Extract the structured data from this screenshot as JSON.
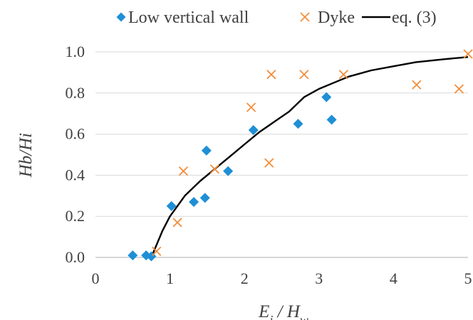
{
  "chart_data": {
    "type": "scatter",
    "xlabel": "E_i / H_w",
    "ylabel": "Hb/Hi",
    "xlim": [
      0,
      5
    ],
    "ylim": [
      0,
      1
    ],
    "xticks": [
      "0",
      "1",
      "2",
      "3",
      "4",
      "5"
    ],
    "yticks": [
      "0.0",
      "0.2",
      "0.4",
      "0.6",
      "0.8",
      "1.0"
    ],
    "grid": "horizontal",
    "legend_position": "top",
    "series": [
      {
        "name": "Low vertical wall",
        "marker": "diamond",
        "color": "#1f8fd6",
        "points": [
          [
            0.5,
            0.01
          ],
          [
            0.68,
            0.01
          ],
          [
            0.75,
            0.005
          ],
          [
            1.02,
            0.25
          ],
          [
            1.32,
            0.27
          ],
          [
            1.47,
            0.29
          ],
          [
            1.49,
            0.52
          ],
          [
            1.78,
            0.42
          ],
          [
            2.12,
            0.62
          ],
          [
            2.72,
            0.65
          ],
          [
            3.1,
            0.78
          ],
          [
            3.17,
            0.67
          ]
        ]
      },
      {
        "name": "Dyke",
        "marker": "x",
        "color": "#f28e3c",
        "points": [
          [
            0.82,
            0.03
          ],
          [
            1.1,
            0.17
          ],
          [
            1.18,
            0.42
          ],
          [
            1.6,
            0.43
          ],
          [
            2.09,
            0.73
          ],
          [
            2.33,
            0.46
          ],
          [
            2.36,
            0.89
          ],
          [
            2.8,
            0.89
          ],
          [
            3.33,
            0.89
          ],
          [
            4.31,
            0.84
          ],
          [
            4.88,
            0.82
          ],
          [
            5.0,
            0.99
          ]
        ]
      },
      {
        "name": "eq. (3)",
        "marker": "line",
        "color": "#000000",
        "points": [
          [
            0.75,
            0.0
          ],
          [
            0.9,
            0.13
          ],
          [
            1.0,
            0.2
          ],
          [
            1.2,
            0.3
          ],
          [
            1.4,
            0.37
          ],
          [
            1.6,
            0.43
          ],
          [
            1.8,
            0.49
          ],
          [
            2.0,
            0.55
          ],
          [
            2.2,
            0.61
          ],
          [
            2.4,
            0.66
          ],
          [
            2.6,
            0.71
          ],
          [
            2.8,
            0.78
          ],
          [
            3.0,
            0.82
          ],
          [
            3.2,
            0.85
          ],
          [
            3.4,
            0.88
          ],
          [
            3.7,
            0.91
          ],
          [
            4.0,
            0.93
          ],
          [
            4.3,
            0.95
          ],
          [
            4.7,
            0.965
          ],
          [
            5.0,
            0.975
          ]
        ]
      }
    ]
  }
}
